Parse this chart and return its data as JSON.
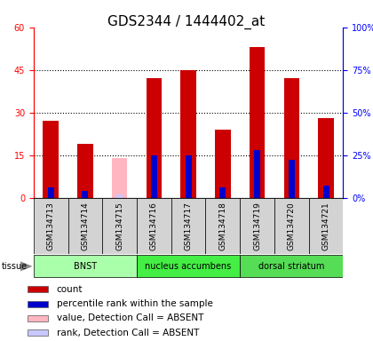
{
  "title": "GDS2344 / 1444402_at",
  "samples": [
    "GSM134713",
    "GSM134714",
    "GSM134715",
    "GSM134716",
    "GSM134717",
    "GSM134718",
    "GSM134719",
    "GSM134720",
    "GSM134721"
  ],
  "count_values": [
    27.0,
    19.0,
    14.0,
    42.0,
    45.0,
    24.0,
    53.0,
    42.0,
    28.0
  ],
  "rank_values": [
    6.0,
    4.0,
    2.0,
    25.0,
    25.0,
    6.0,
    28.0,
    22.0,
    7.0
  ],
  "absent": [
    false,
    false,
    true,
    false,
    false,
    false,
    false,
    false,
    false
  ],
  "color_count_present": "#cc0000",
  "color_rank_present": "#0000cc",
  "color_count_absent": "#ffb6c1",
  "color_rank_absent": "#c8c8ff",
  "ylim_left": [
    0,
    60
  ],
  "ylim_right": [
    0,
    100
  ],
  "yticks_left": [
    0,
    15,
    30,
    45,
    60
  ],
  "yticks_right": [
    0,
    25,
    50,
    75,
    100
  ],
  "ytick_labels_left": [
    "0",
    "15",
    "30",
    "45",
    "60"
  ],
  "ytick_labels_right": [
    "0%",
    "25%",
    "50%",
    "75%",
    "100%"
  ],
  "tissue_groups": [
    {
      "label": "BNST",
      "start": 0,
      "end": 3,
      "color": "#aaffaa"
    },
    {
      "label": "nucleus accumbens",
      "start": 3,
      "end": 6,
      "color": "#44ee44"
    },
    {
      "label": "dorsal striatum",
      "start": 6,
      "end": 9,
      "color": "#55dd55"
    }
  ],
  "tissue_label": "tissue",
  "legend_items": [
    {
      "color": "#cc0000",
      "label": "count"
    },
    {
      "color": "#0000cc",
      "label": "percentile rank within the sample"
    },
    {
      "color": "#ffb6c1",
      "label": "value, Detection Call = ABSENT"
    },
    {
      "color": "#c8c8ff",
      "label": "rank, Detection Call = ABSENT"
    }
  ],
  "bar_width": 0.45,
  "rank_bar_width": 0.18,
  "title_fontsize": 11,
  "tick_fontsize": 7,
  "label_fontsize": 7.5
}
